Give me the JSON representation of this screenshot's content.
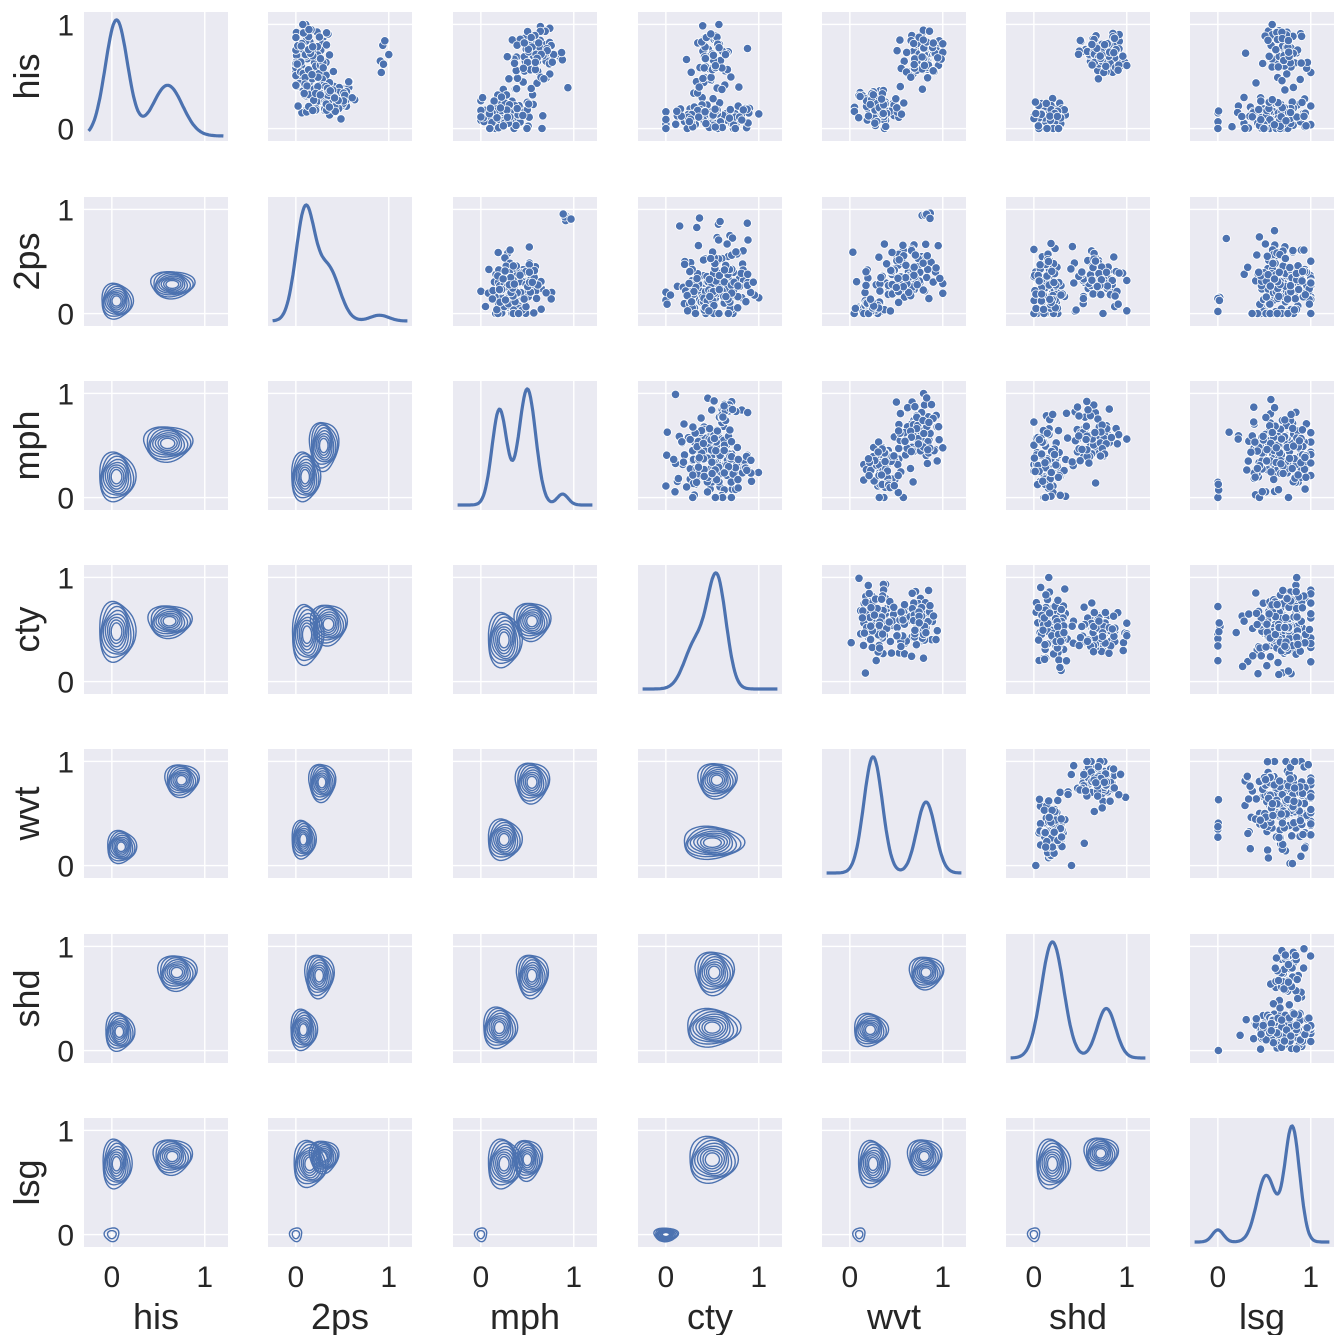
{
  "chart_data": {
    "type": "pairplot",
    "variables": [
      "his",
      "2ps",
      "mph",
      "cty",
      "wvt",
      "shd",
      "lsg"
    ],
    "upper_triangle": "scatter",
    "diagonal": "kde",
    "lower_triangle": "kde_contour",
    "color": "#4c72b0",
    "background": "#eaeaf2",
    "grid": true,
    "x_ticks": [
      0,
      1
    ],
    "y_ticks": [
      0,
      1
    ],
    "xlim": [
      -0.3,
      1.25
    ],
    "ylim": [
      -0.12,
      1.12
    ],
    "diagonal_peaks": [
      {
        "variable": "his",
        "peaks": [
          {
            "x": 0.05,
            "h": 0.8,
            "w": 0.12
          },
          {
            "x": 0.6,
            "h": 0.35,
            "w": 0.16
          }
        ]
      },
      {
        "variable": "2ps",
        "peaks": [
          {
            "x": 0.1,
            "h": 0.95,
            "w": 0.1
          },
          {
            "x": 0.35,
            "h": 0.45,
            "w": 0.12
          },
          {
            "x": 0.9,
            "h": 0.05,
            "w": 0.1
          }
        ]
      },
      {
        "variable": "mph",
        "peaks": [
          {
            "x": 0.2,
            "h": 0.7,
            "w": 0.08
          },
          {
            "x": 0.5,
            "h": 0.85,
            "w": 0.09
          },
          {
            "x": 0.88,
            "h": 0.08,
            "w": 0.06
          }
        ]
      },
      {
        "variable": "cty",
        "peaks": [
          {
            "x": 0.32,
            "h": 0.4,
            "w": 0.12
          },
          {
            "x": 0.55,
            "h": 0.95,
            "w": 0.1
          }
        ]
      },
      {
        "variable": "wvt",
        "peaks": [
          {
            "x": 0.25,
            "h": 0.9,
            "w": 0.1
          },
          {
            "x": 0.82,
            "h": 0.55,
            "w": 0.1
          }
        ]
      },
      {
        "variable": "shd",
        "peaks": [
          {
            "x": 0.2,
            "h": 0.75,
            "w": 0.12
          },
          {
            "x": 0.78,
            "h": 0.32,
            "w": 0.1
          }
        ]
      },
      {
        "variable": "lsg",
        "peaks": [
          {
            "x": 0.0,
            "h": 0.1,
            "w": 0.06
          },
          {
            "x": 0.52,
            "h": 0.55,
            "w": 0.1
          },
          {
            "x": 0.8,
            "h": 0.95,
            "w": 0.08
          }
        ]
      }
    ],
    "scatter_clusters": [
      {
        "row": "his",
        "col": "2ps",
        "clusters": [
          {
            "x": 0.15,
            "y": 0.65,
            "sx": 0.12,
            "sy": 0.18,
            "n": 90
          },
          {
            "x": 0.35,
            "y": 0.3,
            "sx": 0.15,
            "sy": 0.1,
            "n": 90
          },
          {
            "x": 0.95,
            "y": 0.75,
            "sx": 0.03,
            "sy": 0.1,
            "n": 6
          }
        ]
      },
      {
        "row": "his",
        "col": "mph",
        "clusters": [
          {
            "x": 0.25,
            "y": 0.15,
            "sx": 0.15,
            "sy": 0.1,
            "n": 90
          },
          {
            "x": 0.6,
            "y": 0.7,
            "sx": 0.15,
            "sy": 0.12,
            "n": 90
          }
        ]
      },
      {
        "row": "his",
        "col": "cty",
        "clusters": [
          {
            "x": 0.5,
            "y": 0.1,
            "sx": 0.25,
            "sy": 0.06,
            "n": 120
          },
          {
            "x": 0.5,
            "y": 0.65,
            "sx": 0.12,
            "sy": 0.15,
            "n": 70
          }
        ]
      },
      {
        "row": "his",
        "col": "wvt",
        "clusters": [
          {
            "x": 0.3,
            "y": 0.2,
            "sx": 0.12,
            "sy": 0.1,
            "n": 90
          },
          {
            "x": 0.8,
            "y": 0.72,
            "sx": 0.1,
            "sy": 0.12,
            "n": 90
          }
        ]
      },
      {
        "row": "his",
        "col": "shd",
        "clusters": [
          {
            "x": 0.15,
            "y": 0.1,
            "sx": 0.08,
            "sy": 0.08,
            "n": 80
          },
          {
            "x": 0.75,
            "y": 0.7,
            "sx": 0.12,
            "sy": 0.1,
            "n": 100
          }
        ]
      },
      {
        "row": "his",
        "col": "lsg",
        "clusters": [
          {
            "x": 0.6,
            "y": 0.12,
            "sx": 0.2,
            "sy": 0.08,
            "n": 110
          },
          {
            "x": 0.75,
            "y": 0.7,
            "sx": 0.12,
            "sy": 0.15,
            "n": 70
          },
          {
            "x": 0.0,
            "y": 0.1,
            "sx": 0.01,
            "sy": 0.08,
            "n": 5
          }
        ]
      },
      {
        "row": "2ps",
        "col": "mph",
        "clusters": [
          {
            "x": 0.35,
            "y": 0.25,
            "sx": 0.15,
            "sy": 0.15,
            "n": 150
          },
          {
            "x": 0.92,
            "y": 0.95,
            "sx": 0.03,
            "sy": 0.04,
            "n": 5
          }
        ]
      },
      {
        "row": "2ps",
        "col": "cty",
        "clusters": [
          {
            "x": 0.5,
            "y": 0.2,
            "sx": 0.2,
            "sy": 0.12,
            "n": 160
          },
          {
            "x": 0.6,
            "y": 0.65,
            "sx": 0.15,
            "sy": 0.15,
            "n": 30
          }
        ]
      },
      {
        "row": "2ps",
        "col": "wvt",
        "clusters": [
          {
            "x": 0.2,
            "y": 0.05,
            "sx": 0.06,
            "sy": 0.05,
            "n": 60
          },
          {
            "x": 0.55,
            "y": 0.35,
            "sx": 0.2,
            "sy": 0.15,
            "n": 110
          },
          {
            "x": 0.85,
            "y": 0.95,
            "sx": 0.03,
            "sy": 0.04,
            "n": 5
          }
        ]
      },
      {
        "row": "2ps",
        "col": "shd",
        "clusters": [
          {
            "x": 0.15,
            "y": 0.25,
            "sx": 0.08,
            "sy": 0.2,
            "n": 90
          },
          {
            "x": 0.7,
            "y": 0.35,
            "sx": 0.15,
            "sy": 0.15,
            "n": 80
          }
        ]
      },
      {
        "row": "2ps",
        "col": "lsg",
        "clusters": [
          {
            "x": 0.7,
            "y": 0.3,
            "sx": 0.18,
            "sy": 0.2,
            "n": 170
          },
          {
            "x": 0.0,
            "y": 0.1,
            "sx": 0.01,
            "sy": 0.08,
            "n": 5
          }
        ]
      },
      {
        "row": "mph",
        "col": "cty",
        "clusters": [
          {
            "x": 0.5,
            "y": 0.35,
            "sx": 0.2,
            "sy": 0.18,
            "n": 180
          },
          {
            "x": 0.6,
            "y": 0.85,
            "sx": 0.1,
            "sy": 0.08,
            "n": 20
          }
        ]
      },
      {
        "row": "mph",
        "col": "wvt",
        "clusters": [
          {
            "x": 0.35,
            "y": 0.3,
            "sx": 0.1,
            "sy": 0.15,
            "n": 80
          },
          {
            "x": 0.75,
            "y": 0.6,
            "sx": 0.12,
            "sy": 0.15,
            "n": 90
          }
        ]
      },
      {
        "row": "mph",
        "col": "shd",
        "clusters": [
          {
            "x": 0.15,
            "y": 0.35,
            "sx": 0.08,
            "sy": 0.2,
            "n": 90
          },
          {
            "x": 0.65,
            "y": 0.6,
            "sx": 0.15,
            "sy": 0.15,
            "n": 80
          }
        ]
      },
      {
        "row": "mph",
        "col": "lsg",
        "clusters": [
          {
            "x": 0.65,
            "y": 0.45,
            "sx": 0.18,
            "sy": 0.2,
            "n": 180
          },
          {
            "x": 0.0,
            "y": 0.15,
            "sx": 0.01,
            "sy": 0.1,
            "n": 4
          }
        ]
      },
      {
        "row": "cty",
        "col": "wvt",
        "clusters": [
          {
            "x": 0.3,
            "y": 0.55,
            "sx": 0.1,
            "sy": 0.2,
            "n": 90
          },
          {
            "x": 0.75,
            "y": 0.55,
            "sx": 0.12,
            "sy": 0.12,
            "n": 80
          }
        ]
      },
      {
        "row": "cty",
        "col": "shd",
        "clusters": [
          {
            "x": 0.2,
            "y": 0.5,
            "sx": 0.1,
            "sy": 0.2,
            "n": 100
          },
          {
            "x": 0.7,
            "y": 0.5,
            "sx": 0.15,
            "sy": 0.1,
            "n": 80
          }
        ]
      },
      {
        "row": "cty",
        "col": "lsg",
        "clusters": [
          {
            "x": 0.7,
            "y": 0.5,
            "sx": 0.18,
            "sy": 0.18,
            "n": 180
          },
          {
            "x": 0.0,
            "y": 0.4,
            "sx": 0.01,
            "sy": 0.25,
            "n": 8
          }
        ]
      },
      {
        "row": "wvt",
        "col": "shd",
        "clusters": [
          {
            "x": 0.2,
            "y": 0.35,
            "sx": 0.08,
            "sy": 0.15,
            "n": 80
          },
          {
            "x": 0.7,
            "y": 0.8,
            "sx": 0.12,
            "sy": 0.1,
            "n": 100
          }
        ]
      },
      {
        "row": "wvt",
        "col": "lsg",
        "clusters": [
          {
            "x": 0.7,
            "y": 0.55,
            "sx": 0.18,
            "sy": 0.22,
            "n": 180
          },
          {
            "x": 0.0,
            "y": 0.3,
            "sx": 0.01,
            "sy": 0.15,
            "n": 5
          }
        ]
      },
      {
        "row": "shd",
        "col": "lsg",
        "clusters": [
          {
            "x": 0.7,
            "y": 0.2,
            "sx": 0.18,
            "sy": 0.08,
            "n": 140
          },
          {
            "x": 0.75,
            "y": 0.7,
            "sx": 0.1,
            "sy": 0.15,
            "n": 50
          },
          {
            "x": 0.0,
            "y": 0.0,
            "sx": 0.005,
            "sy": 0.01,
            "n": 1
          }
        ]
      }
    ],
    "contour_blobs": [
      {
        "row": "2ps",
        "col": "his",
        "blobs": [
          {
            "x": 0.05,
            "y": 0.12,
            "sx": 0.13,
            "sy": 0.13
          },
          {
            "x": 0.65,
            "y": 0.28,
            "sx": 0.18,
            "sy": 0.1
          }
        ]
      },
      {
        "row": "mph",
        "col": "his",
        "blobs": [
          {
            "x": 0.05,
            "y": 0.2,
            "sx": 0.15,
            "sy": 0.18
          },
          {
            "x": 0.6,
            "y": 0.52,
            "sx": 0.2,
            "sy": 0.13
          }
        ]
      },
      {
        "row": "mph",
        "col": "2ps",
        "blobs": [
          {
            "x": 0.1,
            "y": 0.2,
            "sx": 0.12,
            "sy": 0.18
          },
          {
            "x": 0.3,
            "y": 0.5,
            "sx": 0.12,
            "sy": 0.18
          }
        ]
      },
      {
        "row": "cty",
        "col": "his",
        "blobs": [
          {
            "x": 0.05,
            "y": 0.48,
            "sx": 0.15,
            "sy": 0.22
          },
          {
            "x": 0.62,
            "y": 0.58,
            "sx": 0.18,
            "sy": 0.12
          }
        ]
      },
      {
        "row": "cty",
        "col": "2ps",
        "blobs": [
          {
            "x": 0.12,
            "y": 0.45,
            "sx": 0.13,
            "sy": 0.22
          },
          {
            "x": 0.35,
            "y": 0.55,
            "sx": 0.15,
            "sy": 0.15
          }
        ]
      },
      {
        "row": "cty",
        "col": "mph",
        "blobs": [
          {
            "x": 0.25,
            "y": 0.4,
            "sx": 0.14,
            "sy": 0.2
          },
          {
            "x": 0.55,
            "y": 0.58,
            "sx": 0.15,
            "sy": 0.14
          }
        ]
      },
      {
        "row": "wvt",
        "col": "his",
        "blobs": [
          {
            "x": 0.1,
            "y": 0.18,
            "sx": 0.12,
            "sy": 0.12
          },
          {
            "x": 0.75,
            "y": 0.82,
            "sx": 0.14,
            "sy": 0.12
          }
        ]
      },
      {
        "row": "wvt",
        "col": "2ps",
        "blobs": [
          {
            "x": 0.08,
            "y": 0.25,
            "sx": 0.1,
            "sy": 0.14
          },
          {
            "x": 0.28,
            "y": 0.8,
            "sx": 0.11,
            "sy": 0.14
          }
        ]
      },
      {
        "row": "wvt",
        "col": "mph",
        "blobs": [
          {
            "x": 0.25,
            "y": 0.25,
            "sx": 0.14,
            "sy": 0.15
          },
          {
            "x": 0.55,
            "y": 0.8,
            "sx": 0.14,
            "sy": 0.15
          }
        ]
      },
      {
        "row": "wvt",
        "col": "cty",
        "blobs": [
          {
            "x": 0.5,
            "y": 0.22,
            "sx": 0.25,
            "sy": 0.12
          },
          {
            "x": 0.55,
            "y": 0.82,
            "sx": 0.16,
            "sy": 0.13
          }
        ]
      },
      {
        "row": "shd",
        "col": "his",
        "blobs": [
          {
            "x": 0.08,
            "y": 0.18,
            "sx": 0.12,
            "sy": 0.14
          },
          {
            "x": 0.7,
            "y": 0.75,
            "sx": 0.16,
            "sy": 0.13
          }
        ]
      },
      {
        "row": "shd",
        "col": "2ps",
        "blobs": [
          {
            "x": 0.08,
            "y": 0.2,
            "sx": 0.11,
            "sy": 0.15
          },
          {
            "x": 0.25,
            "y": 0.72,
            "sx": 0.12,
            "sy": 0.16
          }
        ]
      },
      {
        "row": "shd",
        "col": "mph",
        "blobs": [
          {
            "x": 0.2,
            "y": 0.22,
            "sx": 0.14,
            "sy": 0.15
          },
          {
            "x": 0.55,
            "y": 0.72,
            "sx": 0.13,
            "sy": 0.16
          }
        ]
      },
      {
        "row": "shd",
        "col": "cty",
        "blobs": [
          {
            "x": 0.5,
            "y": 0.22,
            "sx": 0.22,
            "sy": 0.14
          },
          {
            "x": 0.52,
            "y": 0.75,
            "sx": 0.16,
            "sy": 0.16
          }
        ]
      },
      {
        "row": "shd",
        "col": "wvt",
        "blobs": [
          {
            "x": 0.22,
            "y": 0.2,
            "sx": 0.14,
            "sy": 0.12
          },
          {
            "x": 0.82,
            "y": 0.75,
            "sx": 0.14,
            "sy": 0.12
          }
        ]
      },
      {
        "row": "lsg",
        "col": "his",
        "blobs": [
          {
            "x": 0.05,
            "y": 0.68,
            "sx": 0.12,
            "sy": 0.18
          },
          {
            "x": 0.65,
            "y": 0.75,
            "sx": 0.16,
            "sy": 0.13
          },
          {
            "x": 0.0,
            "y": 0.0,
            "sx": 0.06,
            "sy": 0.05
          }
        ]
      },
      {
        "row": "lsg",
        "col": "2ps",
        "blobs": [
          {
            "x": 0.15,
            "y": 0.68,
            "sx": 0.14,
            "sy": 0.17
          },
          {
            "x": 0.3,
            "y": 0.75,
            "sx": 0.12,
            "sy": 0.12
          },
          {
            "x": 0.0,
            "y": 0.0,
            "sx": 0.05,
            "sy": 0.05
          }
        ]
      },
      {
        "row": "lsg",
        "col": "mph",
        "blobs": [
          {
            "x": 0.25,
            "y": 0.68,
            "sx": 0.14,
            "sy": 0.18
          },
          {
            "x": 0.5,
            "y": 0.72,
            "sx": 0.12,
            "sy": 0.15
          },
          {
            "x": 0.0,
            "y": 0.0,
            "sx": 0.05,
            "sy": 0.05
          }
        ]
      },
      {
        "row": "lsg",
        "col": "cty",
        "blobs": [
          {
            "x": 0.5,
            "y": 0.72,
            "sx": 0.2,
            "sy": 0.17
          },
          {
            "x": 0.0,
            "y": 0.0,
            "sx": 0.1,
            "sy": 0.05
          }
        ]
      },
      {
        "row": "lsg",
        "col": "wvt",
        "blobs": [
          {
            "x": 0.25,
            "y": 0.68,
            "sx": 0.13,
            "sy": 0.17
          },
          {
            "x": 0.8,
            "y": 0.75,
            "sx": 0.14,
            "sy": 0.13
          },
          {
            "x": 0.1,
            "y": 0.0,
            "sx": 0.05,
            "sy": 0.05
          }
        ]
      },
      {
        "row": "lsg",
        "col": "shd",
        "blobs": [
          {
            "x": 0.2,
            "y": 0.68,
            "sx": 0.14,
            "sy": 0.18
          },
          {
            "x": 0.72,
            "y": 0.78,
            "sx": 0.14,
            "sy": 0.12
          },
          {
            "x": 0.0,
            "y": 0.0,
            "sx": 0.05,
            "sy": 0.05
          }
        ]
      }
    ]
  }
}
